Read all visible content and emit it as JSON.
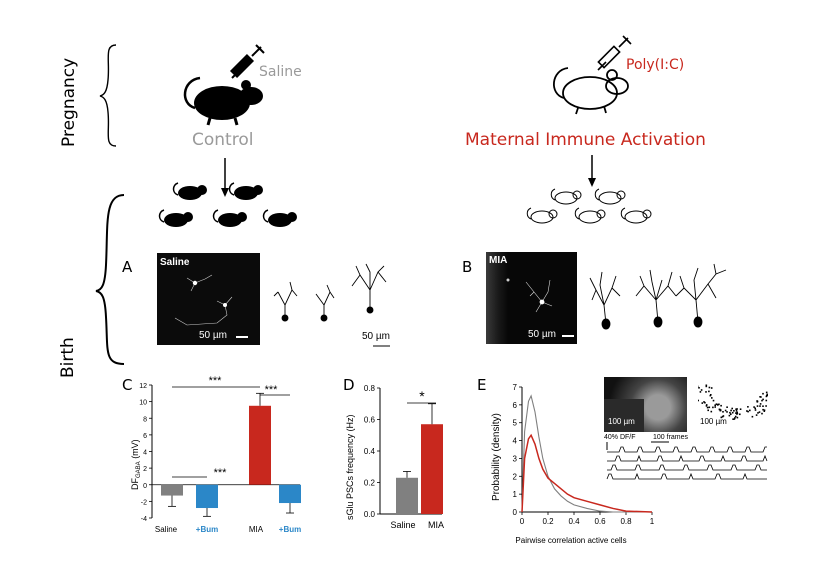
{
  "rows": {
    "pregnancy": "Pregnancy",
    "birth": "Birth"
  },
  "control": {
    "injection": "Saline",
    "title": "Control"
  },
  "mia": {
    "injection": "Poly(I:C)",
    "title": "Maternal Immune Activation"
  },
  "colors": {
    "saline": "#808080",
    "mia": "#c8281e",
    "bum": "#2b87c8",
    "text_gray": "#9a9a9a"
  },
  "panelA": {
    "letter": "A",
    "micro_label": "Saline",
    "micro_scale": "50 µm",
    "trace_scale": "50 µm"
  },
  "panelB": {
    "letter": "B",
    "micro_label": "MIA",
    "micro_scale": "50 µm"
  },
  "panelC": {
    "letter": "C",
    "ylabel": "DF",
    "ylabel_sub": "GABA",
    "ylabel_unit": " (mV)",
    "sig_top": "***",
    "sig_right": "***",
    "sig_left": "***"
  },
  "panelD": {
    "letter": "D",
    "ylabel": "sGlu PSCs frequency (Hz)",
    "sig": "*"
  },
  "panelE": {
    "letter": "E",
    "ylabel": "Probability (density)",
    "xlabel": "Pairwise correlation active cells",
    "scale1": "100 µm",
    "scale2": "100 µm",
    "dff": "40% DF/F",
    "frames": "100 frames"
  },
  "chart_data": [
    {
      "type": "bar",
      "panel": "C",
      "categories": [
        "Saline",
        "+Bum",
        "MIA",
        "+Bum"
      ],
      "values": [
        -1.3,
        -2.8,
        9.5,
        -2.2
      ],
      "errors": [
        1.3,
        1.0,
        1.5,
        1.2
      ],
      "colors": [
        "#808080",
        "#2b87c8",
        "#c8281e",
        "#2b87c8"
      ],
      "ylim": [
        -4,
        12
      ],
      "yticks": [
        -4,
        -2,
        0,
        2,
        4,
        6,
        8,
        10,
        12
      ],
      "ylabel": "DFGABA (mV)",
      "annotations": [
        "***",
        "***",
        "***"
      ]
    },
    {
      "type": "bar",
      "panel": "D",
      "categories": [
        "Saline",
        "MIA"
      ],
      "values": [
        0.23,
        0.57
      ],
      "errors": [
        0.04,
        0.13
      ],
      "colors": [
        "#808080",
        "#c8281e"
      ],
      "ylim": [
        0,
        0.8
      ],
      "yticks": [
        0.0,
        0.2,
        0.4,
        0.6,
        0.8
      ],
      "ylabel": "sGlu PSCs frequency (Hz)",
      "annotations": [
        "*"
      ]
    },
    {
      "type": "line",
      "panel": "E",
      "xlim": [
        0,
        1
      ],
      "ylim": [
        0,
        7
      ],
      "xticks": [
        0,
        0.2,
        0.4,
        0.6,
        0.8,
        1
      ],
      "yticks": [
        0,
        1,
        2,
        3,
        4,
        5,
        6,
        7
      ],
      "xlabel": "Pairwise correlation active cells",
      "ylabel": "Probability (density)",
      "series": [
        {
          "color": "#808080",
          "x": [
            0,
            0.02,
            0.05,
            0.07,
            0.1,
            0.13,
            0.16,
            0.2,
            0.25,
            0.3,
            0.35,
            0.4,
            0.5,
            0.6,
            0.7,
            1.0
          ],
          "y": [
            0,
            4.5,
            6.2,
            6.5,
            5.6,
            4.2,
            3.0,
            2.0,
            1.3,
            0.9,
            0.6,
            0.4,
            0.2,
            0.05,
            0,
            0
          ]
        },
        {
          "color": "#c8281e",
          "x": [
            0,
            0.02,
            0.05,
            0.07,
            0.1,
            0.13,
            0.16,
            0.2,
            0.25,
            0.3,
            0.35,
            0.4,
            0.5,
            0.6,
            0.7,
            0.8,
            1.0
          ],
          "y": [
            0,
            3.0,
            4.1,
            4.3,
            3.8,
            3.0,
            2.4,
            1.9,
            1.6,
            1.3,
            1.0,
            0.8,
            0.6,
            0.4,
            0.2,
            0.05,
            0
          ]
        }
      ]
    }
  ]
}
